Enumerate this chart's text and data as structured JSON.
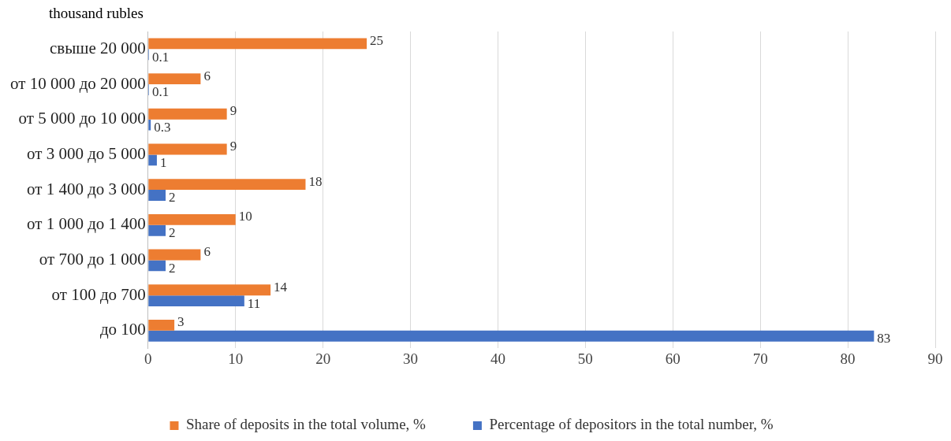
{
  "chart_data": {
    "type": "bar",
    "orientation": "horizontal",
    "ylabel": "thousand rubles",
    "categories": [
      "свыше 20 000",
      "от 10 000 до 20 000",
      "от 5 000 до 10 000",
      "от 3 000 до 5 000",
      "от 1 400 до 3 000",
      "от 1 000 до 1 400",
      "от 700 до 1 000",
      "от 100 до 700",
      "до 100"
    ],
    "series": [
      {
        "name": "Share of deposits in the total volume, %",
        "color": "#ed7d31",
        "values": [
          25,
          6,
          9,
          9,
          18,
          10,
          6,
          14,
          3
        ]
      },
      {
        "name": "Percentage of depositors in the total number, %",
        "color": "#4472c4",
        "values": [
          0.1,
          0.1,
          0.3,
          1,
          2,
          2,
          2,
          11,
          83
        ]
      }
    ],
    "xlim": [
      0,
      90
    ],
    "xticks": [
      0,
      10,
      20,
      30,
      40,
      50,
      60,
      70,
      80,
      90
    ],
    "grid": "x",
    "legend": "bottom",
    "data_labels": true
  }
}
